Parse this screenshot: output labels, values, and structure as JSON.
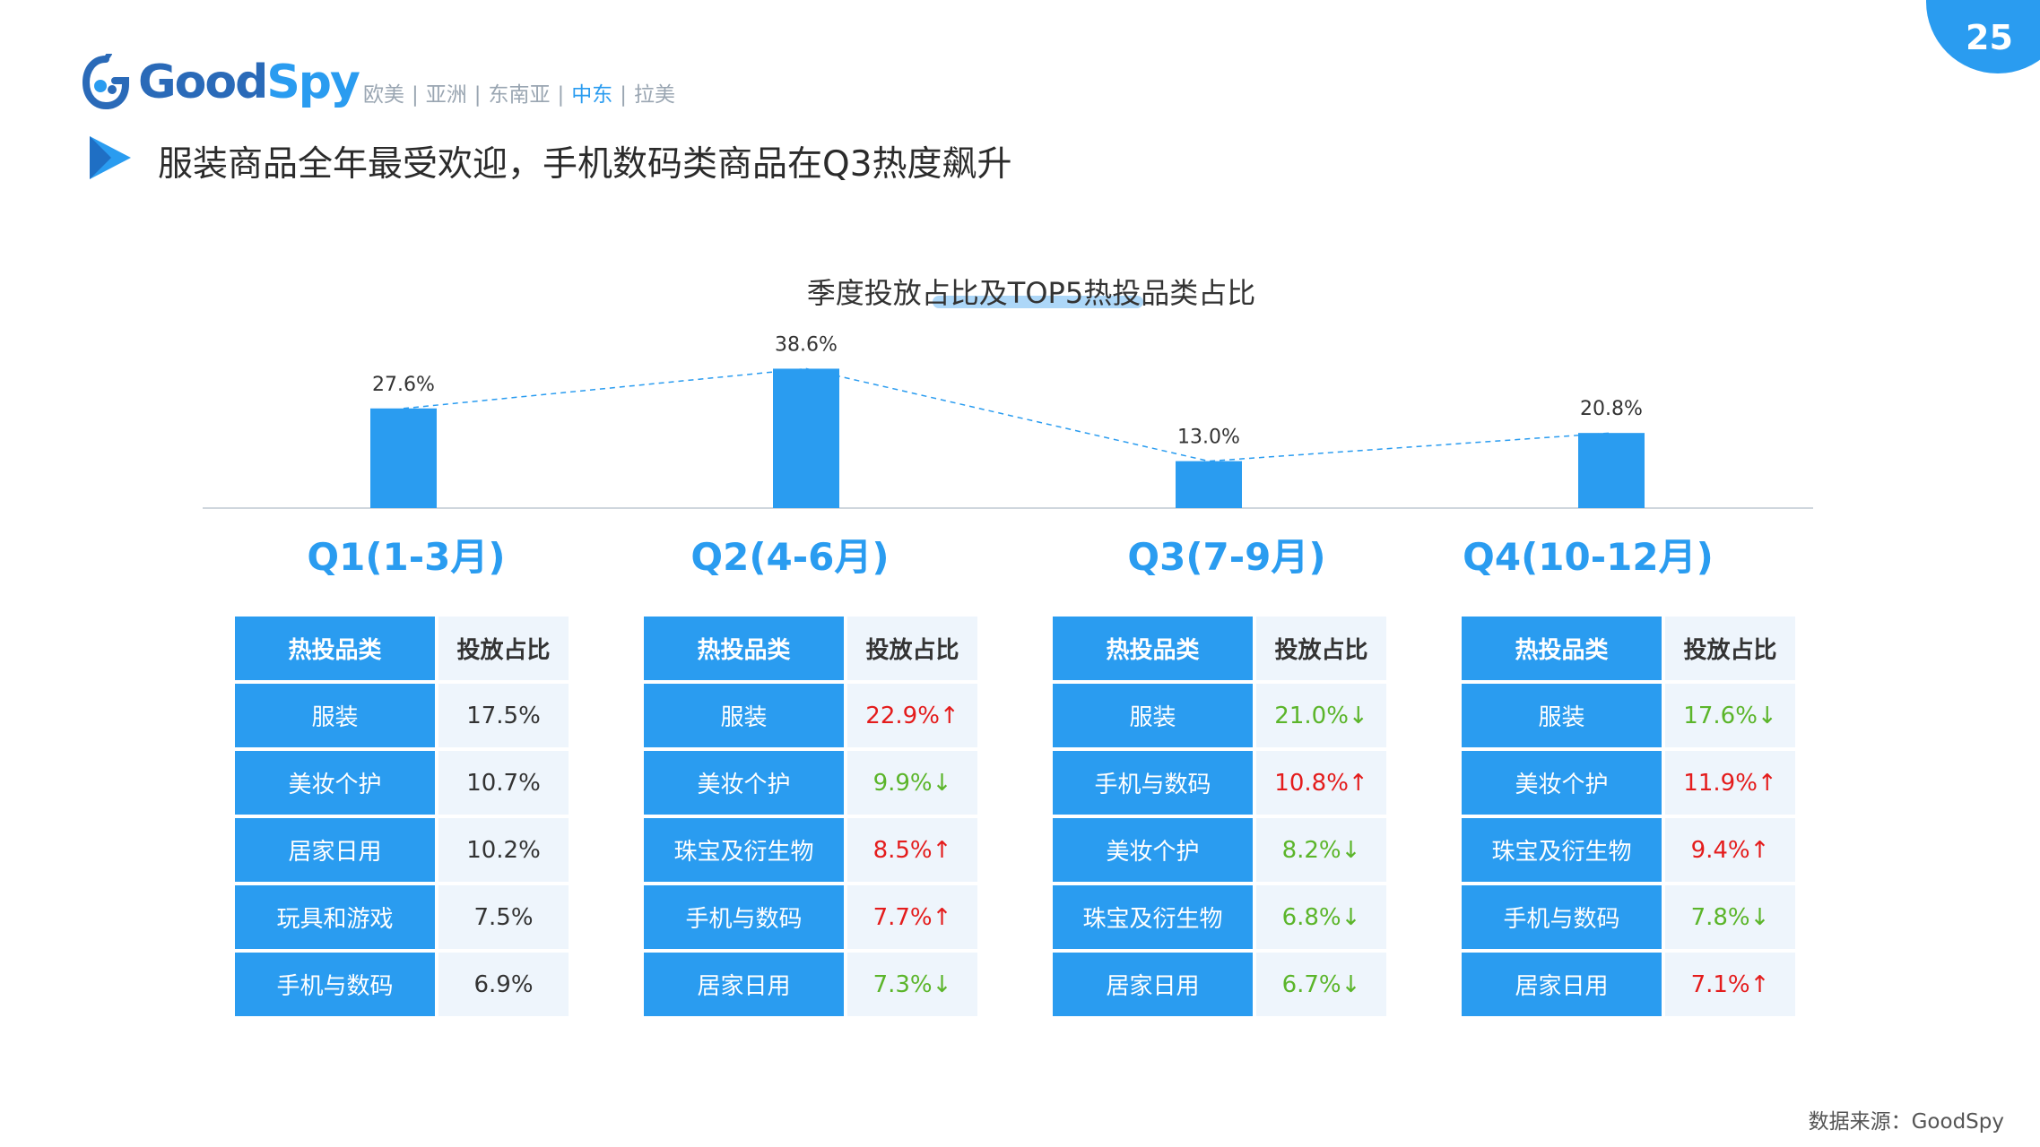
{
  "page_number": "25",
  "logo_text": {
    "good": "Good",
    "spy": "Spy"
  },
  "regions": [
    "欧美",
    "亚洲",
    "东南亚",
    "中东",
    "拉美"
  ],
  "region_separator": "|",
  "active_region": "中东",
  "headline": "服装商品全年最受欢迎，手机数码类商品在Q3热度飙升",
  "source": "数据来源：GoodSpy",
  "colors": {
    "accent": "#2a9cf0",
    "up": "#e41c1c",
    "down": "#5bb52a"
  },
  "chart_data": {
    "type": "bar",
    "title": "季度投放占比及TOP5热投品类占比",
    "categories": [
      "Q1(1-3月)",
      "Q2(4-6月)",
      "Q3(7-9月)",
      "Q4(10-12月)"
    ],
    "values": [
      27.6,
      38.6,
      13.0,
      20.8
    ],
    "value_labels": [
      "27.6%",
      "38.6%",
      "13.0%",
      "20.8%"
    ],
    "unit": "%",
    "trend_line": true,
    "grid": false
  },
  "tables": [
    {
      "header": [
        "热投品类",
        "投放占比"
      ],
      "rows": [
        {
          "category": "服装",
          "share": "17.5%",
          "trend": ""
        },
        {
          "category": "美妆个护",
          "share": "10.7%",
          "trend": ""
        },
        {
          "category": "居家日用",
          "share": "10.2%",
          "trend": ""
        },
        {
          "category": "玩具和游戏",
          "share": "7.5%",
          "trend": ""
        },
        {
          "category": "手机与数码",
          "share": "6.9%",
          "trend": ""
        }
      ]
    },
    {
      "header": [
        "热投品类",
        "投放占比"
      ],
      "rows": [
        {
          "category": "服装",
          "share": "22.9%↑",
          "trend": "up"
        },
        {
          "category": "美妆个护",
          "share": "9.9%↓",
          "trend": "down"
        },
        {
          "category": "珠宝及衍生物",
          "share": "8.5%↑",
          "trend": "up"
        },
        {
          "category": "手机与数码",
          "share": "7.7%↑",
          "trend": "up"
        },
        {
          "category": "居家日用",
          "share": "7.3%↓",
          "trend": "down"
        }
      ]
    },
    {
      "header": [
        "热投品类",
        "投放占比"
      ],
      "rows": [
        {
          "category": "服装",
          "share": "21.0%↓",
          "trend": "down"
        },
        {
          "category": "手机与数码",
          "share": "10.8%↑",
          "trend": "up"
        },
        {
          "category": "美妆个护",
          "share": "8.2%↓",
          "trend": "down"
        },
        {
          "category": "珠宝及衍生物",
          "share": "6.8%↓",
          "trend": "down"
        },
        {
          "category": "居家日用",
          "share": "6.7%↓",
          "trend": "down"
        }
      ]
    },
    {
      "header": [
        "热投品类",
        "投放占比"
      ],
      "rows": [
        {
          "category": "服装",
          "share": "17.6%↓",
          "trend": "down"
        },
        {
          "category": "美妆个护",
          "share": "11.9%↑",
          "trend": "up"
        },
        {
          "category": "珠宝及衍生物",
          "share": "9.4%↑",
          "trend": "up"
        },
        {
          "category": "手机与数码",
          "share": "7.8%↓",
          "trend": "down"
        },
        {
          "category": "居家日用",
          "share": "7.1%↑",
          "trend": "up"
        }
      ]
    }
  ]
}
